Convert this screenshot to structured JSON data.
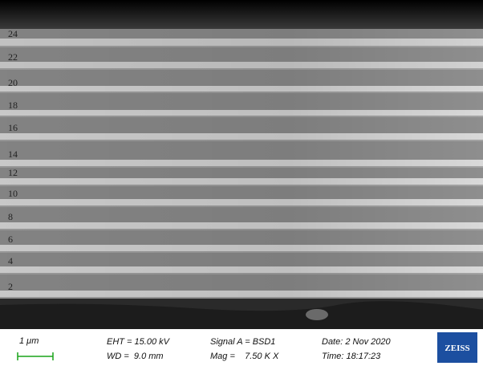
{
  "layer_labels": [
    "24",
    "22",
    "20",
    "18",
    "16",
    "14",
    "12",
    "10",
    "8",
    "6",
    "4",
    "2"
  ],
  "info_bar": {
    "scale": "1 μm",
    "eht": "EHT = 15.00 kV",
    "wd": "WD =  9.0 mm",
    "signal": "Signal A = BSD1",
    "mag": "Mag =    7.50 K X",
    "date": "Date: 2 Nov 2020",
    "time": "Time: 18:17:23",
    "logo": "ZEISS"
  }
}
